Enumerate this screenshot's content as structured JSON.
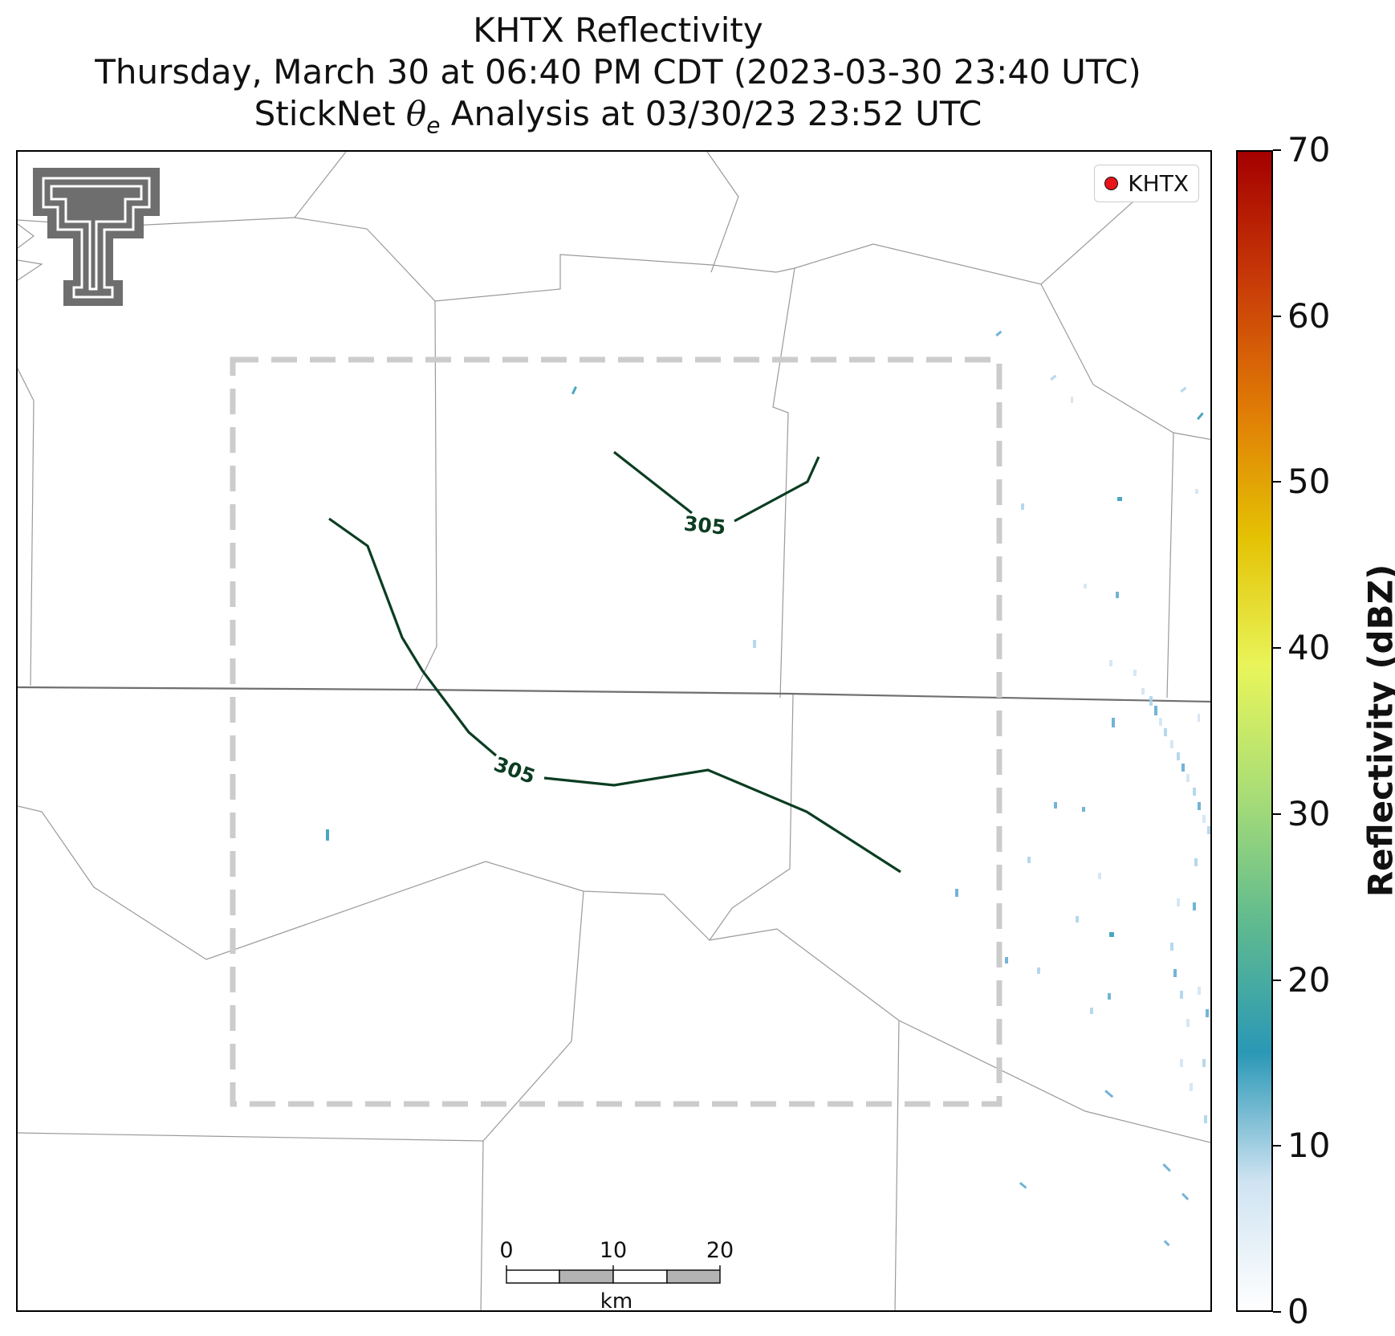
{
  "title": {
    "line1": "KHTX Reflectivity",
    "line2": "Thursday, March 30 at 06:40 PM CDT (2023-03-30 23:40 UTC)",
    "line3_prefix": "StickNet ",
    "line3_theta": "θ",
    "line3_sub": "e",
    "line3_suffix": " Analysis at 03/30/23 23:52 UTC"
  },
  "legend": {
    "label": "KHTX",
    "marker_color": "#e8141a"
  },
  "contours": [
    {
      "value": "305",
      "label": "305"
    },
    {
      "value": "305",
      "label": "305"
    }
  ],
  "scalebar": {
    "ticks": [
      "0",
      "10",
      "20"
    ],
    "unit": "km"
  },
  "colorbar": {
    "title": "Reflectivity (dBZ)",
    "min": 0,
    "max": 70,
    "ticks": [
      "0",
      "10",
      "20",
      "30",
      "40",
      "50",
      "60",
      "70"
    ],
    "colors": [
      "#ffffff",
      "#cfe3f2",
      "#2a98b6",
      "#5fba8f",
      "#a8dd77",
      "#e8f55a",
      "#e4c204",
      "#e07b06",
      "#c83a08",
      "#a40000"
    ]
  },
  "colors": {
    "contour": "#0b3d22",
    "county_line": "#9a9a9a",
    "state_line": "#6f6f6f",
    "domain_box": "#cccccc"
  },
  "icons": {
    "logo": "texas-tech-double-t-logo"
  }
}
